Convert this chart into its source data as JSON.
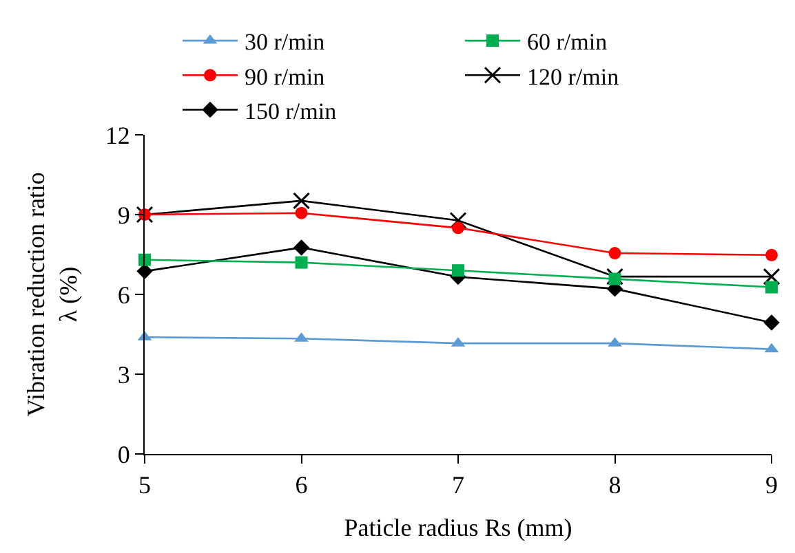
{
  "chart_data": {
    "type": "line",
    "xlabel": "Paticle radius Rs (mm)",
    "ylabel": "Vibration reduction ratio\nλ (%)",
    "x": [
      5,
      6,
      7,
      8,
      9
    ],
    "series": [
      {
        "name": "30 r/min",
        "color": "#5b9bd5",
        "marker": "triangle",
        "values": [
          4.39,
          4.34,
          4.16,
          4.16,
          3.94
        ]
      },
      {
        "name": "60 r/min",
        "color": "#00b050",
        "marker": "square",
        "values": [
          7.3,
          7.2,
          6.9,
          6.58,
          6.27
        ]
      },
      {
        "name": "90 r/min",
        "color": "#ff0000",
        "marker": "circle",
        "values": [
          9.0,
          9.06,
          8.5,
          7.55,
          7.48
        ]
      },
      {
        "name": "120 r/min",
        "color": "#000000",
        "marker": "cross",
        "values": [
          9.0,
          9.52,
          8.78,
          6.67,
          6.67
        ]
      },
      {
        "name": "150 r/min",
        "color": "#000000",
        "marker": "diamond",
        "values": [
          6.87,
          7.76,
          6.66,
          6.21,
          4.94
        ]
      }
    ],
    "xlim": [
      5,
      9
    ],
    "xticks": [
      5,
      6,
      7,
      8,
      9
    ],
    "ylim": [
      0,
      12
    ],
    "yticks": [
      0,
      3,
      6,
      9,
      12
    ],
    "grid": false,
    "legend": "top"
  }
}
